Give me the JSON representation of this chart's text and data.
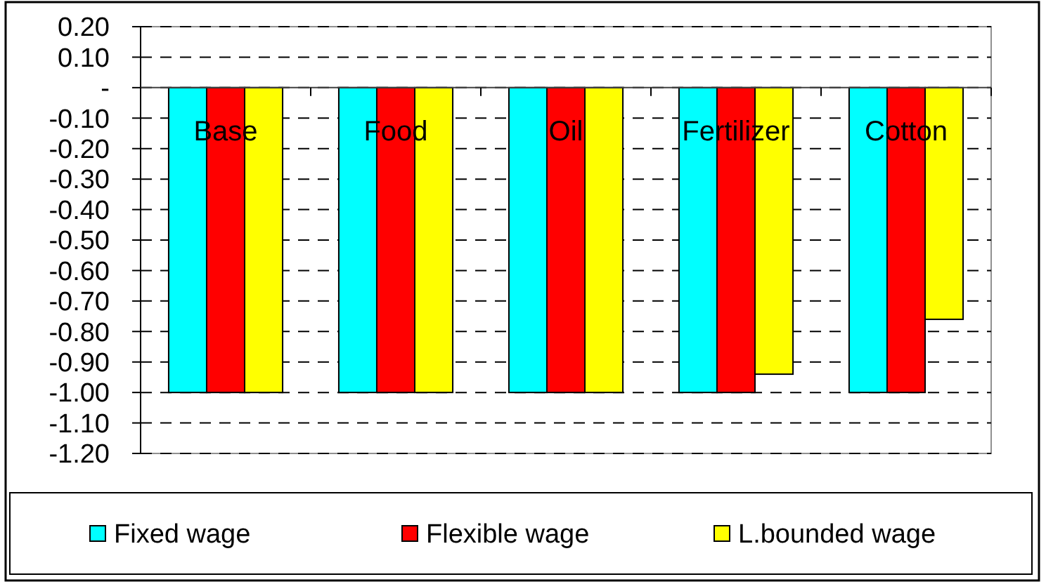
{
  "chart_data": {
    "type": "bar",
    "categories": [
      "Base",
      "Food",
      "Oil",
      "Fertilizer",
      "Cotton"
    ],
    "series": [
      {
        "name": "Fixed wage",
        "color": "#00ffff",
        "values": [
          -1,
          -1,
          -1,
          -1,
          -1
        ]
      },
      {
        "name": "Flexible wage",
        "color": "#ff0000",
        "values": [
          -1,
          -1,
          -1,
          -1,
          -1
        ]
      },
      {
        "name": "L.bounded wage",
        "color": "#ffff00",
        "values": [
          -1,
          -1,
          -1,
          -0.94,
          -0.76
        ]
      }
    ],
    "ylim": [
      -1.2,
      0.2
    ],
    "yticks": [
      {
        "value": 0.2,
        "label": "0.20"
      },
      {
        "value": 0.1,
        "label": "0.10"
      },
      {
        "value": 0,
        "label": "-"
      },
      {
        "value": -0.1,
        "label": "-0.10"
      },
      {
        "value": -0.2,
        "label": "-0.20"
      },
      {
        "value": -0.3,
        "label": "-0.30"
      },
      {
        "value": -0.4,
        "label": "-0.40"
      },
      {
        "value": -0.5,
        "label": "-0.50"
      },
      {
        "value": -0.6,
        "label": "-0.60"
      },
      {
        "value": -0.7,
        "label": "-0.70"
      },
      {
        "value": -0.8,
        "label": "-0.80"
      },
      {
        "value": -0.9,
        "label": "-0.90"
      },
      {
        "value": -1,
        "label": "-1.00"
      },
      {
        "value": -1.1,
        "label": "-1.10"
      },
      {
        "value": -1.2,
        "label": "-1.20"
      }
    ],
    "grid": "y",
    "legend": "bottom"
  }
}
